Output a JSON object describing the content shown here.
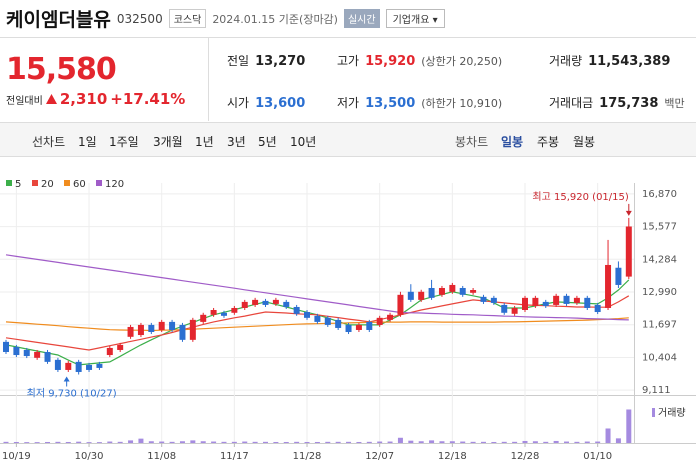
{
  "header": {
    "name": "케이엠더블유",
    "code": "032500",
    "market": "코스닥",
    "date": "2024.01.15 기준(장마감)",
    "realtime": "실시간",
    "company_info": "기업개요"
  },
  "quote": {
    "price": "15,580",
    "change_label": "전일대비",
    "change": "2,310",
    "change_pct": "+17.41%",
    "stats": [
      {
        "label": "전일",
        "value": "13,270"
      },
      {
        "label": "고가",
        "value": "15,920",
        "extra": "(상한가 20,250)"
      },
      {
        "label": "거래량",
        "value": "11,543,389"
      },
      {
        "label": "시가",
        "value": "13,600"
      },
      {
        "label": "저가",
        "value": "13,500",
        "extra": "(하한가 10,910)"
      },
      {
        "label": "거래대금",
        "value": "175,738",
        "extra": "백만"
      }
    ]
  },
  "toolbar": {
    "line_chart": "선차트",
    "line_periods": [
      "1일",
      "1주일",
      "3개월",
      "1년",
      "3년",
      "5년",
      "10년"
    ],
    "candle_chart": "봉차트",
    "candle_periods": [
      "일봉",
      "주봉",
      "월봉"
    ]
  },
  "chart_data": {
    "type": "candlestick",
    "categories": [
      null,
      "10/19",
      null,
      null,
      null,
      null,
      null,
      null,
      "10/30",
      null,
      null,
      null,
      null,
      null,
      null,
      "11/08",
      null,
      null,
      null,
      null,
      null,
      null,
      "11/17",
      null,
      null,
      null,
      null,
      null,
      null,
      "11/28",
      null,
      null,
      null,
      null,
      null,
      null,
      "12/07",
      null,
      null,
      null,
      null,
      null,
      null,
      "12/18",
      null,
      null,
      null,
      null,
      null,
      null,
      "12/28",
      null,
      null,
      null,
      null,
      null,
      null,
      "01/10",
      null,
      null,
      null
    ],
    "open": [
      11020,
      10820,
      10700,
      10390,
      10620,
      10310,
      9910,
      10230,
      10110,
      10150,
      10500,
      10700,
      11220,
      11290,
      11690,
      11490,
      11810,
      11690,
      11100,
      11810,
      12090,
      12170,
      12170,
      12360,
      12480,
      12640,
      12520,
      12600,
      12400,
      12200,
      12050,
      11970,
      11890,
      11690,
      11490,
      11810,
      11690,
      11890,
      12090,
      13000,
      12680,
      13150,
      12880,
      13000,
      13150,
      12960,
      12800,
      12760,
      12480,
      12130,
      12280,
      12440,
      12600,
      12480,
      12840,
      12560,
      12760,
      12480,
      12360,
      13950,
      13600
    ],
    "high": [
      11100,
      10900,
      10780,
      10700,
      10700,
      10390,
      10270,
      10310,
      10190,
      10230,
      10860,
      10980,
      11690,
      11770,
      11770,
      11890,
      11890,
      11770,
      11970,
      12170,
      12360,
      12250,
      12440,
      12680,
      12760,
      12720,
      12760,
      12680,
      12480,
      12280,
      12130,
      12050,
      11970,
      11770,
      11770,
      11890,
      12050,
      12170,
      13000,
      13300,
      13080,
      13470,
      13230,
      13350,
      13230,
      13150,
      12880,
      12840,
      12560,
      12440,
      12840,
      12840,
      12680,
      12920,
      12920,
      12840,
      12840,
      12560,
      15050,
      14200,
      15920
    ],
    "low": [
      10540,
      10420,
      10380,
      10310,
      10150,
      9830,
      9830,
      9730,
      9830,
      9910,
      10420,
      10620,
      11140,
      11210,
      11330,
      11410,
      11410,
      11020,
      11020,
      11730,
      12010,
      11970,
      12090,
      12280,
      12400,
      12400,
      12440,
      12320,
      12050,
      11890,
      11730,
      11610,
      11490,
      11330,
      11410,
      11410,
      11610,
      11810,
      12010,
      12600,
      12600,
      12680,
      12800,
      12920,
      12800,
      12880,
      12520,
      12480,
      12090,
      12050,
      12200,
      12360,
      12360,
      12400,
      12440,
      12480,
      12280,
      12120,
      12280,
      13150,
      13500
    ],
    "close": [
      10620,
      10500,
      10460,
      10620,
      10230,
      9910,
      10190,
      9830,
      9910,
      9990,
      10780,
      10900,
      11610,
      11690,
      11410,
      11810,
      11490,
      11100,
      11890,
      12090,
      12280,
      12050,
      12360,
      12600,
      12680,
      12480,
      12680,
      12400,
      12130,
      11970,
      11810,
      11690,
      11570,
      11410,
      11690,
      11490,
      11970,
      12090,
      12880,
      12680,
      13000,
      12760,
      13150,
      13270,
      12880,
      13070,
      12600,
      12560,
      12170,
      12360,
      12760,
      12760,
      12440,
      12840,
      12520,
      12760,
      12360,
      12200,
      14060,
      13270,
      15580
    ],
    "up_color": "#e3262e",
    "down_color": "#2b6fd1",
    "volume": [
      400000,
      350000,
      300000,
      300000,
      350000,
      400000,
      350000,
      450000,
      300000,
      300000,
      500000,
      400000,
      900000,
      1500000,
      600000,
      500000,
      400000,
      600000,
      900000,
      600000,
      500000,
      400000,
      400000,
      500000,
      400000,
      400000,
      350000,
      350000,
      400000,
      350000,
      350000,
      400000,
      400000,
      400000,
      350000,
      400000,
      500000,
      500000,
      1800000,
      800000,
      600000,
      900000,
      600000,
      600000,
      500000,
      400000,
      400000,
      350000,
      400000,
      400000,
      700000,
      600000,
      400000,
      700000,
      500000,
      400000,
      500000,
      500000,
      5000000,
      1600000,
      11543389
    ],
    "volume_color": "#a58be0",
    "volume_ylim": [
      0,
      15500000
    ],
    "volume_label": "거래량",
    "ma": [
      {
        "name": "5",
        "color": "#3caf4a",
        "values": [
          10900,
          10820,
          10740,
          10660,
          10580,
          10500,
          10300,
          10110,
          10150,
          10190,
          10230,
          10450,
          10680,
          10900,
          11100,
          11290,
          11490,
          11640,
          11790,
          11940,
          12090,
          12190,
          12290,
          12400,
          12500,
          12600,
          12500,
          12400,
          12290,
          12190,
          12090,
          11960,
          11830,
          11690,
          11690,
          11690,
          11690,
          11890,
          12090,
          12380,
          12680,
          12790,
          12890,
          13000,
          12920,
          12840,
          12760,
          12560,
          12360,
          12360,
          12360,
          12440,
          12520,
          12600,
          12580,
          12560,
          12540,
          12520,
          12760,
          13070,
          13470
        ]
      },
      {
        "name": "20",
        "color": "#e8463c",
        "values": [
          11180,
          11120,
          11060,
          11000,
          10940,
          10880,
          10820,
          10760,
          10700,
          10780,
          10870,
          10950,
          11040,
          11120,
          11210,
          11290,
          11390,
          11500,
          11600,
          11710,
          11810,
          11890,
          11970,
          12040,
          12120,
          12200,
          12180,
          12160,
          12130,
          12110,
          12090,
          12030,
          11980,
          11920,
          11870,
          11810,
          11900,
          11990,
          12090,
          12180,
          12280,
          12360,
          12440,
          12520,
          12600,
          12680,
          12640,
          12600,
          12560,
          12520,
          12480,
          12460,
          12450,
          12430,
          12420,
          12400,
          12400,
          12390,
          12390,
          12600,
          12840
        ]
      },
      {
        "name": "60",
        "color": "#f08c1e",
        "values": [
          11810,
          11780,
          11750,
          11720,
          11690,
          11660,
          11620,
          11590,
          11560,
          11530,
          11500,
          11490,
          11480,
          11480,
          11470,
          11480,
          11490,
          11500,
          11520,
          11540,
          11560,
          11580,
          11600,
          11620,
          11640,
          11660,
          11680,
          11700,
          11720,
          11730,
          11740,
          11750,
          11760,
          11770,
          11780,
          11790,
          11800,
          11800,
          11800,
          11810,
          11810,
          11810,
          11800,
          11800,
          11800,
          11800,
          11800,
          11800,
          11810,
          11810,
          11820,
          11830,
          11840,
          11850,
          11860,
          11870,
          11880,
          11900,
          11920,
          11940,
          11970
        ]
      },
      {
        "name": "120",
        "color": "#a05cc8",
        "values": [
          14460,
          14400,
          14340,
          14280,
          14220,
          14160,
          14100,
          14040,
          13980,
          13920,
          13860,
          13800,
          13740,
          13680,
          13620,
          13560,
          13500,
          13440,
          13380,
          13320,
          13260,
          13200,
          13140,
          13080,
          13020,
          12960,
          12900,
          12840,
          12780,
          12720,
          12660,
          12600,
          12540,
          12480,
          12420,
          12360,
          12300,
          12240,
          12180,
          12170,
          12160,
          12140,
          12130,
          12110,
          12100,
          12090,
          12070,
          12060,
          12040,
          12030,
          12010,
          12000,
          11990,
          11980,
          11970,
          11960,
          11940,
          11930,
          11920,
          11900,
          11890
        ]
      }
    ],
    "ylim": [
      8920,
      17300
    ],
    "yticks": [
      {
        "value": 16870,
        "label": "16,870"
      },
      {
        "value": 15577,
        "label": "15,577"
      },
      {
        "value": 14284,
        "label": "14,284"
      },
      {
        "value": 12990,
        "label": "12,990"
      },
      {
        "value": 11697,
        "label": "11,697"
      },
      {
        "value": 10404,
        "label": "10,404"
      },
      {
        "value": 9111,
        "label": "9,111"
      }
    ],
    "grid": true,
    "annotations": [
      {
        "text": "최고 15,920 (01/15)",
        "index": 60,
        "value": 15920
      },
      {
        "text": "최저 9,730 (10/27)",
        "index": 7,
        "value": 9730
      }
    ]
  }
}
